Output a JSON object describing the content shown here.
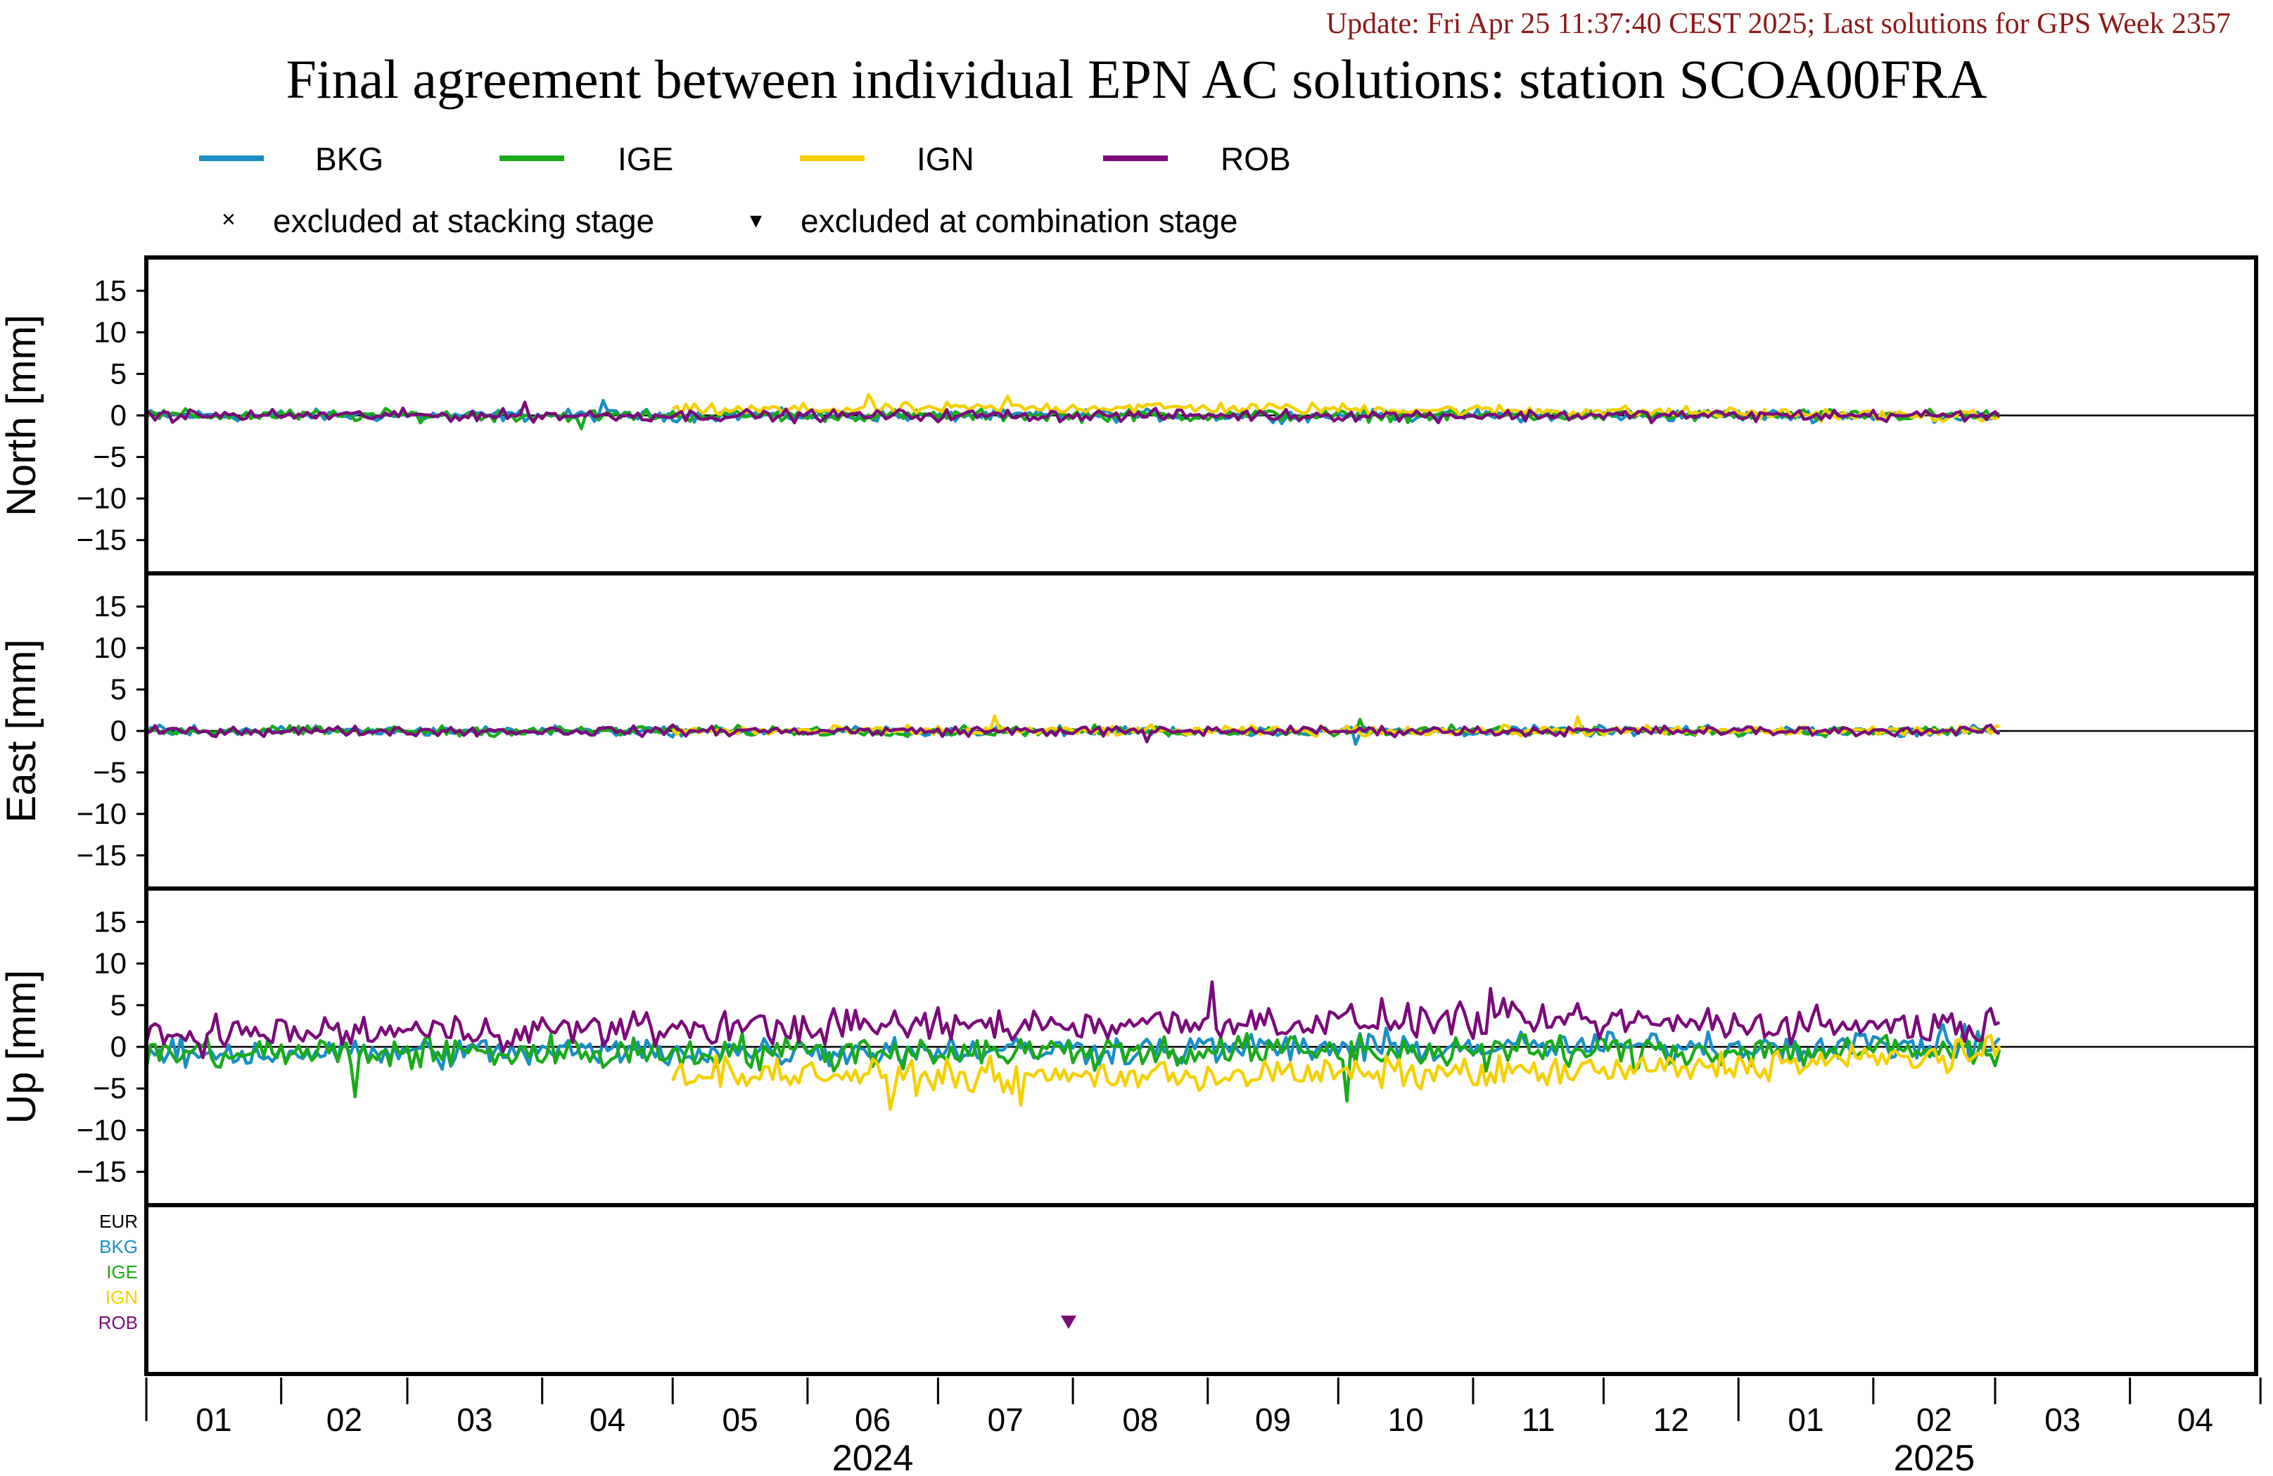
{
  "header": {
    "update_text": "Update: Fri Apr 25 11:37:40 CEST 2025; Last solutions for GPS Week 2357",
    "title": "Final agreement between individual EPN AC solutions: station SCOA00FRA"
  },
  "legend": {
    "series": [
      {
        "name": "BKG",
        "color": "#1a8fc4"
      },
      {
        "name": "IGE",
        "color": "#1aaa1a"
      },
      {
        "name": "IGN",
        "color": "#f5d000"
      },
      {
        "name": "ROB",
        "color": "#7b0a7b"
      }
    ],
    "markers": [
      {
        "symbol": "×",
        "label": "excluded at stacking stage"
      },
      {
        "symbol": "▾",
        "label": "excluded at combination stage"
      }
    ]
  },
  "chart_data": {
    "type": "line",
    "x_unit": "month",
    "x_range": [
      "2024-01-01",
      "2025-04-30"
    ],
    "x_ticks": [
      "01",
      "02",
      "03",
      "04",
      "05",
      "06",
      "07",
      "08",
      "09",
      "10",
      "11",
      "12",
      "01",
      "02",
      "03",
      "04"
    ],
    "x_years": [
      {
        "label": "2024",
        "under": "06"
      },
      {
        "label": "2025",
        "under": "02"
      }
    ],
    "panels": [
      {
        "ylabel": "North [mm]",
        "ylim": [
          -19,
          19
        ],
        "yticks": [
          15,
          10,
          5,
          0,
          -5,
          -10,
          -15
        ],
        "series": [
          {
            "name": "BKG",
            "start": "2024-01-01",
            "end": "2025-03-02",
            "amp": 0.6,
            "offset": 0.0,
            "profile": [
              [
                0,
                0
              ]
            ]
          },
          {
            "name": "IGE",
            "start": "2024-01-01",
            "end": "2025-03-02",
            "amp": 0.6,
            "offset": -0.2,
            "profile": [
              [
                0,
                0
              ]
            ]
          },
          {
            "name": "IGN",
            "start": "2024-05-01",
            "end": "2025-03-02",
            "amp": 0.6,
            "offset": 0.6,
            "profile": [
              [
                0,
                0.6
              ],
              [
                0.35,
                1.0
              ],
              [
                0.75,
                0.4
              ],
              [
                1,
                -0.2
              ]
            ]
          },
          {
            "name": "ROB",
            "start": "2024-01-01",
            "end": "2025-03-02",
            "amp": 0.6,
            "offset": 0.2,
            "profile": [
              [
                0,
                0
              ]
            ]
          }
        ],
        "spikes": [
          {
            "name": "BKG",
            "date": "2024-04-15",
            "value": 1.8
          },
          {
            "name": "IGE",
            "date": "2024-04-10",
            "value": -1.6
          },
          {
            "name": "IGN",
            "date": "2024-06-15",
            "value": 2.5
          },
          {
            "name": "IGN",
            "date": "2024-07-17",
            "value": 2.3
          },
          {
            "name": "ROB",
            "date": "2024-03-28",
            "value": 1.6
          }
        ]
      },
      {
        "ylabel": "East [mm]",
        "ylim": [
          -19,
          19
        ],
        "yticks": [
          15,
          10,
          5,
          0,
          -5,
          -10,
          -15
        ],
        "series": [
          {
            "name": "BKG",
            "start": "2024-01-01",
            "end": "2025-03-02",
            "amp": 0.5,
            "offset": -0.1,
            "profile": [
              [
                0,
                0
              ]
            ]
          },
          {
            "name": "IGE",
            "start": "2024-01-01",
            "end": "2025-03-02",
            "amp": 0.5,
            "offset": 0.0,
            "profile": [
              [
                0,
                0
              ]
            ]
          },
          {
            "name": "IGN",
            "start": "2024-05-01",
            "end": "2025-03-02",
            "amp": 0.5,
            "offset": 0.0,
            "profile": [
              [
                0,
                0
              ]
            ]
          },
          {
            "name": "ROB",
            "start": "2024-01-01",
            "end": "2025-03-02",
            "amp": 0.5,
            "offset": 0.1,
            "profile": [
              [
                0,
                0
              ]
            ]
          }
        ],
        "spikes": [
          {
            "name": "IGN",
            "date": "2024-07-14",
            "value": 1.8
          },
          {
            "name": "BKG",
            "date": "2024-10-05",
            "value": -1.6
          },
          {
            "name": "IGE",
            "date": "2024-10-06",
            "value": 1.4
          },
          {
            "name": "IGN",
            "date": "2024-11-25",
            "value": 1.7
          },
          {
            "name": "ROB",
            "date": "2024-08-18",
            "value": -1.3
          }
        ]
      },
      {
        "ylabel": "Up [mm]",
        "ylim": [
          -19,
          19
        ],
        "yticks": [
          15,
          10,
          5,
          0,
          -5,
          -10,
          -15
        ],
        "series": [
          {
            "name": "BKG",
            "start": "2024-01-01",
            "end": "2025-03-02",
            "amp": 1.6,
            "offset": -1.0,
            "profile": [
              [
                0,
                -0.8
              ],
              [
                0.5,
                -0.3
              ],
              [
                1,
                0.3
              ]
            ]
          },
          {
            "name": "IGE",
            "start": "2024-01-01",
            "end": "2025-03-02",
            "amp": 1.8,
            "offset": -0.8,
            "profile": [
              [
                0,
                -0.8
              ],
              [
                0.5,
                -0.5
              ],
              [
                1,
                -0.5
              ]
            ]
          },
          {
            "name": "IGN",
            "start": "2024-05-01",
            "end": "2025-03-02",
            "amp": 1.6,
            "offset": -3.2,
            "profile": [
              [
                0,
                -3.0
              ],
              [
                0.25,
                -3.6
              ],
              [
                0.7,
                -3.0
              ],
              [
                0.9,
                -1.5
              ],
              [
                1,
                -0.8
              ]
            ]
          },
          {
            "name": "ROB",
            "start": "2024-01-01",
            "end": "2025-03-02",
            "amp": 1.8,
            "offset": 2.0,
            "profile": [
              [
                0,
                1.5
              ],
              [
                0.4,
                2.5
              ],
              [
                0.7,
                3.2
              ],
              [
                1,
                2.5
              ]
            ]
          }
        ],
        "spikes": [
          {
            "name": "IGE",
            "date": "2024-02-18",
            "value": -6.0
          },
          {
            "name": "IGN",
            "date": "2024-06-20",
            "value": -7.5
          },
          {
            "name": "IGN",
            "date": "2024-07-20",
            "value": -7.0
          },
          {
            "name": "ROB",
            "date": "2024-09-02",
            "value": 7.8
          },
          {
            "name": "ROB",
            "date": "2024-11-05",
            "value": 7.0
          },
          {
            "name": "IGE",
            "date": "2024-10-03",
            "value": -6.5
          }
        ]
      },
      {
        "ylabel": "",
        "type": "exclusion",
        "rows": [
          {
            "label": "EUR",
            "color": "#000000"
          },
          {
            "label": "BKG",
            "color": "#1a8fc4"
          },
          {
            "label": "IGE",
            "color": "#1aaa1a"
          },
          {
            "label": "IGN",
            "color": "#f5d000"
          },
          {
            "label": "ROB",
            "color": "#7b0a7b"
          }
        ],
        "excluded": [
          {
            "row": "ROB",
            "date": "2024-07-31",
            "stage": "combination"
          }
        ]
      }
    ]
  }
}
